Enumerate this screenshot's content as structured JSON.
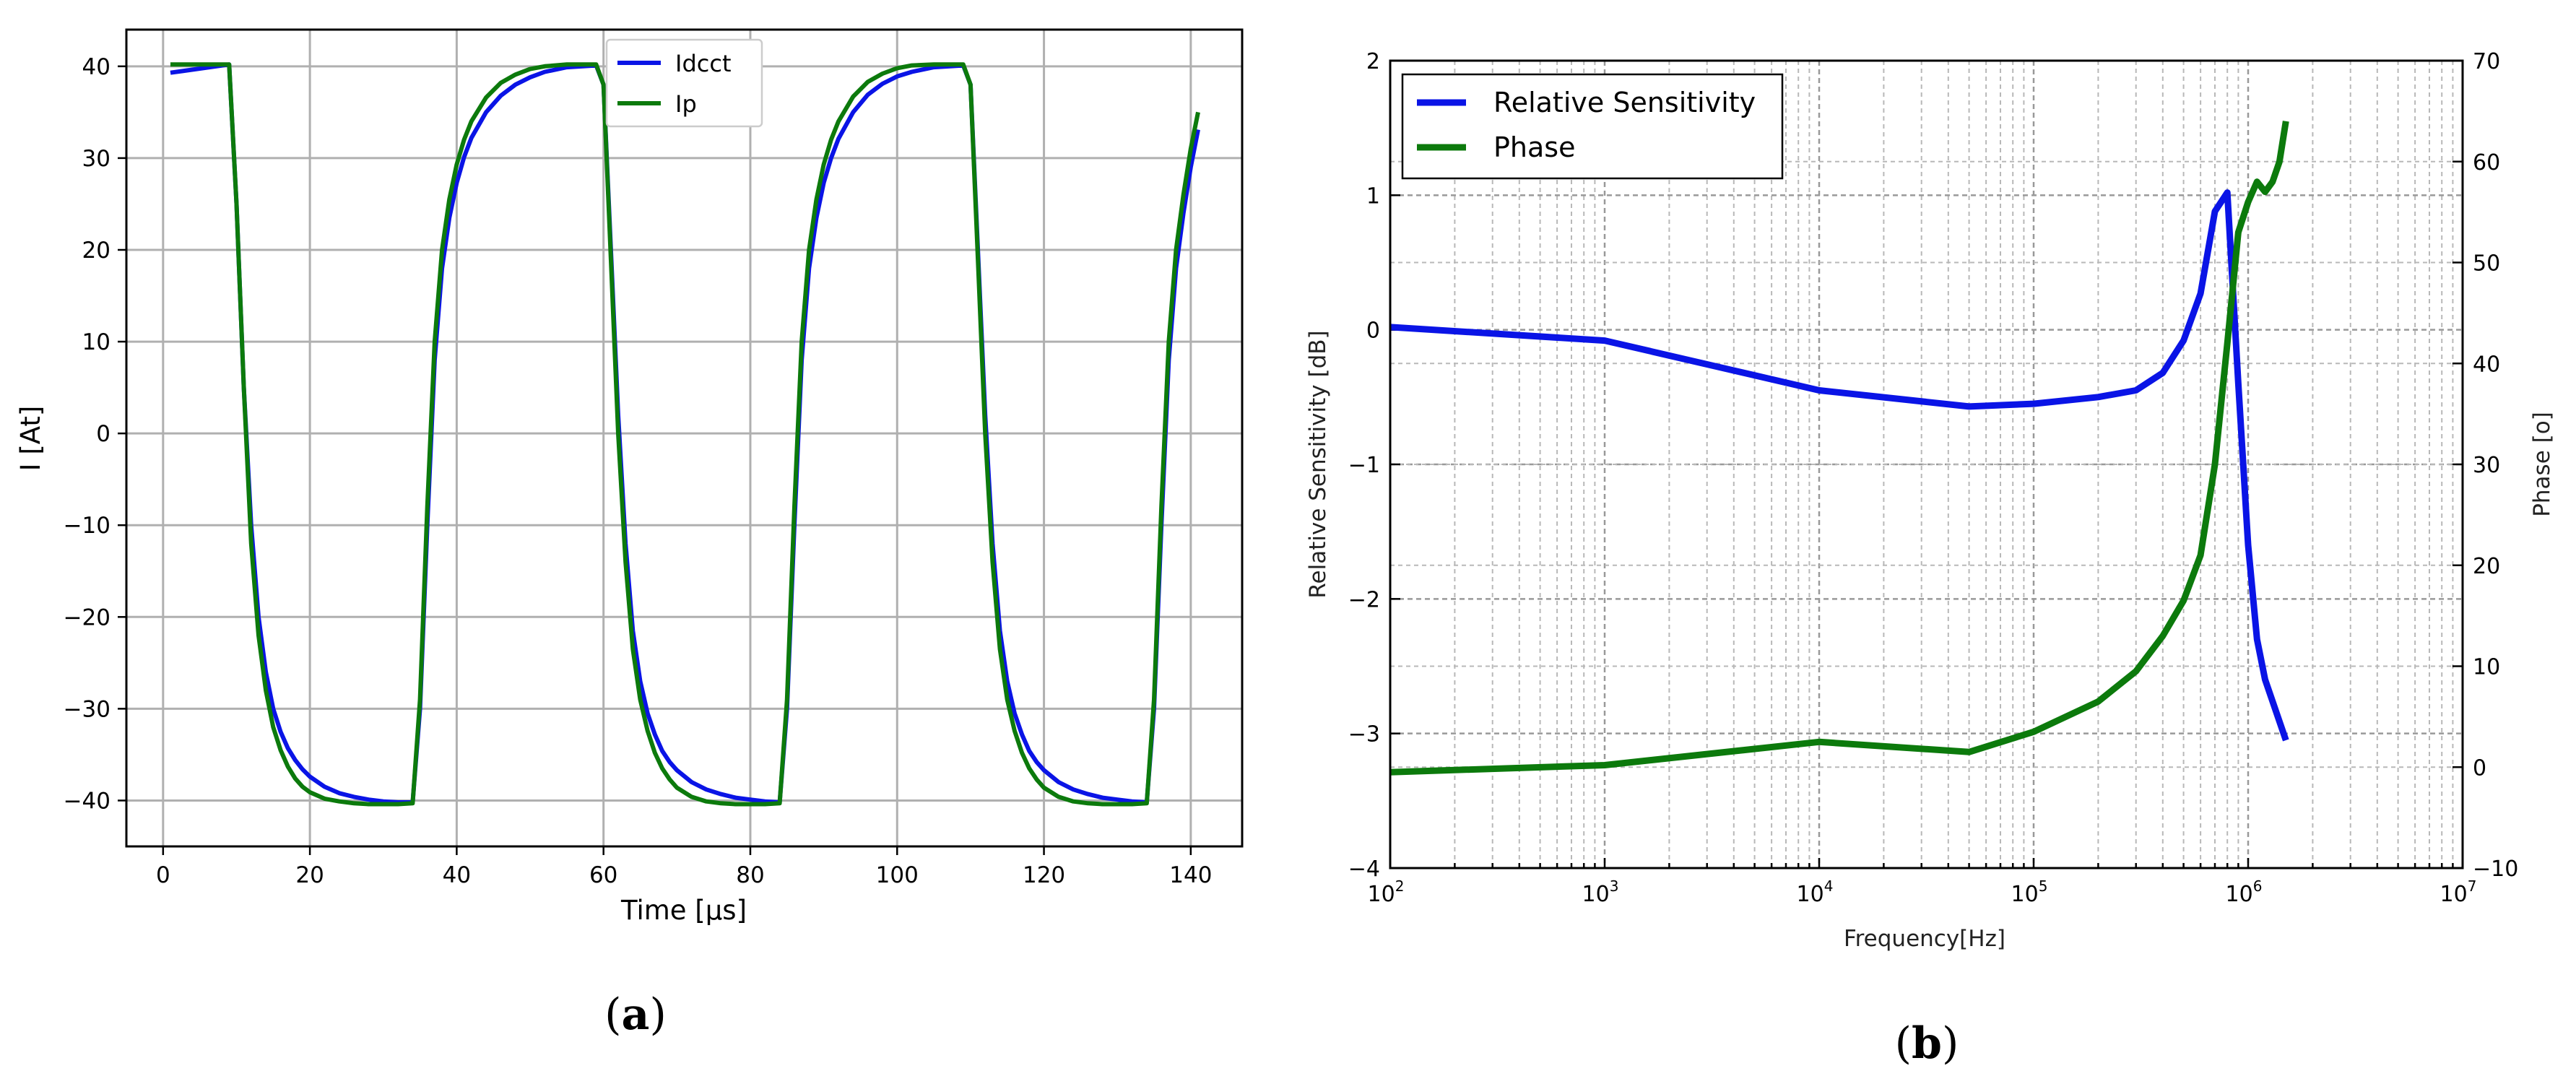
{
  "colors": {
    "blue": "#0a14e6",
    "green": "#0c7a0c"
  },
  "captions": {
    "a_open": "(",
    "a_letter": "a",
    "a_close": ")",
    "b_open": "(",
    "b_letter": "b",
    "b_close": ")"
  },
  "chart_data": [
    {
      "type": "line",
      "panel": "a",
      "title": "",
      "xlabel": "Time [µs]",
      "ylabel": "I [At]",
      "xlim": [
        -5,
        147
      ],
      "ylim": [
        -45,
        44
      ],
      "xticks": [
        0,
        20,
        40,
        60,
        80,
        100,
        120,
        140
      ],
      "yticks": [
        -40,
        -30,
        -20,
        -10,
        0,
        10,
        20,
        30,
        40
      ],
      "grid": true,
      "legend_position": "top-center",
      "series": [
        {
          "name": "Idcct",
          "color": "#0a14e6",
          "x": [
            1,
            9,
            10,
            11,
            12,
            13,
            14,
            15,
            16,
            17,
            18,
            19,
            20,
            22,
            24,
            26,
            28,
            30,
            32,
            34,
            35,
            36,
            37,
            38,
            39,
            40,
            41,
            42,
            44,
            46,
            48,
            50,
            52,
            55,
            59,
            60,
            61,
            62,
            63,
            64,
            65,
            66,
            67,
            68,
            69,
            70,
            72,
            74,
            76,
            78,
            80,
            82,
            84,
            85,
            86,
            87,
            88,
            89,
            90,
            91,
            92,
            94,
            96,
            98,
            100,
            102,
            105,
            109,
            110,
            111,
            112,
            113,
            114,
            115,
            116,
            117,
            118,
            119,
            120,
            122,
            124,
            126,
            128,
            130,
            132,
            134,
            135,
            136,
            137,
            138,
            139,
            140,
            141
          ],
          "y": [
            39.3,
            40.2,
            25,
            5,
            -10,
            -20,
            -26,
            -30,
            -32.5,
            -34.3,
            -35.6,
            -36.6,
            -37.4,
            -38.5,
            -39.2,
            -39.6,
            -39.9,
            -40.1,
            -40.2,
            -40.2,
            -30,
            -10,
            8,
            18,
            23.5,
            27.3,
            30.1,
            32.2,
            35,
            36.8,
            38,
            38.8,
            39.4,
            39.9,
            40.1,
            38,
            20,
            2,
            -12,
            -21.5,
            -27,
            -30.5,
            -32.8,
            -34.6,
            -35.8,
            -36.7,
            -38,
            -38.8,
            -39.3,
            -39.7,
            -39.9,
            -40.1,
            -40.2,
            -30,
            -10,
            8,
            18,
            23.5,
            27.3,
            30,
            32.1,
            35,
            36.9,
            38.1,
            38.9,
            39.4,
            39.9,
            40.1,
            38,
            20,
            2,
            -12,
            -21.5,
            -27,
            -30.5,
            -32.8,
            -34.6,
            -35.8,
            -36.7,
            -38,
            -38.8,
            -39.3,
            -39.7,
            -39.9,
            -40.1,
            -40.2,
            -30,
            -10,
            8,
            18,
            24,
            29,
            33.1
          ]
        },
        {
          "name": "Ip",
          "color": "#0c7a0c",
          "x": [
            1,
            9,
            10,
            11,
            12,
            13,
            14,
            15,
            16,
            17,
            18,
            19,
            20,
            22,
            24,
            26,
            28,
            30,
            32,
            34,
            35,
            36,
            37,
            38,
            39,
            40,
            41,
            42,
            44,
            46,
            48,
            50,
            52,
            55,
            59,
            60,
            61,
            62,
            63,
            64,
            65,
            66,
            67,
            68,
            69,
            70,
            72,
            74,
            76,
            78,
            80,
            82,
            84,
            85,
            86,
            87,
            88,
            89,
            90,
            91,
            92,
            94,
            96,
            98,
            100,
            102,
            105,
            109,
            110,
            111,
            112,
            113,
            114,
            115,
            116,
            117,
            118,
            119,
            120,
            122,
            124,
            126,
            128,
            130,
            132,
            134,
            135,
            136,
            137,
            138,
            139,
            140,
            141
          ],
          "y": [
            40.2,
            40.2,
            25,
            5,
            -12,
            -22,
            -28,
            -32,
            -34.5,
            -36.3,
            -37.6,
            -38.5,
            -39.1,
            -39.8,
            -40.1,
            -40.3,
            -40.4,
            -40.4,
            -40.4,
            -40.3,
            -29,
            -8,
            10,
            20,
            25.5,
            29.3,
            32,
            34,
            36.6,
            38.2,
            39.1,
            39.7,
            40,
            40.2,
            40.2,
            38,
            19,
            0,
            -14,
            -23.5,
            -29,
            -32.4,
            -34.8,
            -36.5,
            -37.7,
            -38.6,
            -39.6,
            -40.1,
            -40.3,
            -40.4,
            -40.4,
            -40.4,
            -40.3,
            -29,
            -8,
            10,
            20,
            25.5,
            29.3,
            32,
            34,
            36.7,
            38.3,
            39.2,
            39.8,
            40.1,
            40.2,
            40.2,
            38,
            19,
            0,
            -14,
            -23.5,
            -29,
            -32.4,
            -34.8,
            -36.5,
            -37.7,
            -38.6,
            -39.6,
            -40.1,
            -40.3,
            -40.4,
            -40.4,
            -40.4,
            -40.3,
            -29,
            -8,
            10,
            20,
            26,
            31,
            35
          ]
        }
      ]
    },
    {
      "type": "line",
      "panel": "b",
      "title": "",
      "xlabel": "Frequency[Hz]",
      "ylabel": "Relative Sensitivity [dB]",
      "y2label": "Phase [o]",
      "xscale": "log",
      "xlim": [
        100,
        10000000
      ],
      "ylim": [
        -4,
        2
      ],
      "y2lim": [
        -10,
        70
      ],
      "xticks": [
        100,
        1000,
        10000,
        100000,
        1000000,
        10000000
      ],
      "xtick_labels": [
        {
          "base": "10",
          "exp": "2"
        },
        {
          "base": "10",
          "exp": "3"
        },
        {
          "base": "10",
          "exp": "4"
        },
        {
          "base": "10",
          "exp": "5"
        },
        {
          "base": "10",
          "exp": "6"
        },
        {
          "base": "10",
          "exp": "7"
        }
      ],
      "yticks": [
        -4,
        -3,
        -2,
        -1,
        0,
        1,
        2
      ],
      "ytick_labels": [
        "−4",
        "−3",
        "−2",
        "−1",
        "0",
        "1",
        "2"
      ],
      "y2ticks": [
        -10,
        0,
        10,
        20,
        30,
        40,
        50,
        60,
        70
      ],
      "y2tick_labels": [
        "−10",
        "0",
        "10",
        "20",
        "30",
        "40",
        "50",
        "60",
        "70"
      ],
      "grid": true,
      "legend_position": "top-left",
      "series": [
        {
          "name": "Relative Sensitivity",
          "color": "#0a14e6",
          "axis": "left",
          "x": [
            100,
            1000,
            10000,
            50000,
            100000,
            200000,
            300000,
            400000,
            500000,
            600000,
            700000,
            800000,
            900000,
            1000000,
            1100000,
            1200000,
            1500000
          ],
          "y": [
            0.02,
            -0.08,
            -0.45,
            -0.57,
            -0.55,
            -0.5,
            -0.45,
            -0.32,
            -0.08,
            0.27,
            0.88,
            1.02,
            -0.4,
            -1.6,
            -2.3,
            -2.6,
            -3.05
          ]
        },
        {
          "name": "Phase",
          "color": "#0c7a0c",
          "axis": "right",
          "x": [
            100,
            1000,
            10000,
            50000,
            100000,
            200000,
            300000,
            400000,
            500000,
            600000,
            700000,
            800000,
            900000,
            1000000,
            1100000,
            1200000,
            1300000,
            1400000,
            1500000
          ],
          "y": [
            -0.5,
            0.2,
            2.5,
            1.5,
            3.5,
            6.5,
            9.5,
            13,
            16.5,
            21,
            30,
            42,
            53,
            56,
            58,
            57,
            58,
            60,
            64
          ]
        }
      ]
    }
  ]
}
